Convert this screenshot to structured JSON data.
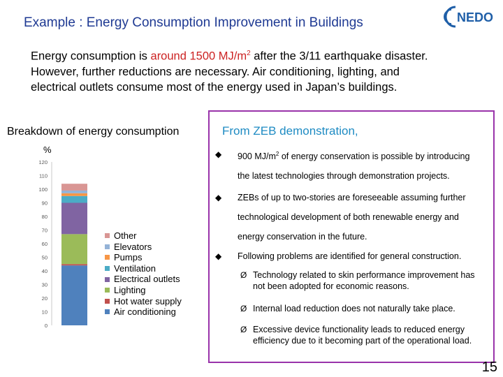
{
  "header": {
    "title": "Example : Energy Consumption Improvement in Buildings",
    "logo_text": "NEDO"
  },
  "intro": {
    "p1": "Energy consumption is ",
    "highlight": "around 1500 MJ/m",
    "sup": "2",
    "p2": " after the 3/11 earthquake disaster.",
    "line2": "However, further reductions are necessary.  Air conditioning, lighting, and",
    "line3": "electrical outlets consume most of the energy used in Japan’s buildings."
  },
  "breakdown": {
    "title": "Breakdown of energy consumption",
    "unit": "%"
  },
  "chart_data": {
    "type": "bar",
    "stacked": true,
    "title": "Breakdown of energy consumption",
    "ylabel": "%",
    "ylim": [
      0,
      120
    ],
    "yticks": [
      0,
      10,
      20,
      30,
      40,
      50,
      60,
      70,
      80,
      90,
      100,
      110,
      120
    ],
    "categories": [
      ""
    ],
    "series": [
      {
        "name": "Air conditioning",
        "values": [
          44
        ],
        "color": "#4f81bd"
      },
      {
        "name": "Hot water supply",
        "values": [
          1
        ],
        "color": "#c0504d"
      },
      {
        "name": "Lighting",
        "values": [
          22
        ],
        "color": "#9bbb59"
      },
      {
        "name": "Electrical outlets",
        "values": [
          23
        ],
        "color": "#8064a2"
      },
      {
        "name": "Ventilation",
        "values": [
          5
        ],
        "color": "#4bacc6"
      },
      {
        "name": "Pumps",
        "values": [
          2
        ],
        "color": "#f79646"
      },
      {
        "name": "Elevators",
        "values": [
          2
        ],
        "color": "#95b3d7"
      },
      {
        "name": "Other",
        "values": [
          5
        ],
        "color": "#d99694"
      }
    ],
    "legend_order": [
      "Other",
      "Elevators",
      "Pumps",
      "Ventilation",
      "Electrical outlets",
      "Lighting",
      "Hot water supply",
      "Air conditioning"
    ]
  },
  "zeb": {
    "title": "From ZEB demonstration,",
    "bullets": [
      {
        "pre": "900 MJ/m",
        "sup": "2",
        "post": " of energy conservation is possible by introducing",
        "line2": "the latest technologies through demonstration projects."
      },
      {
        "pre": "ZEBs of up to two-stories are foreseeable assuming further",
        "sup": "",
        "post": "",
        "line2": "technological development of both renewable energy and",
        "line3": "energy conservation in the future."
      },
      {
        "pre": "Following problems are identified for general construction.",
        "sup": "",
        "post": "",
        "line2": ""
      }
    ],
    "subs": [
      "Technology related to skin performance improvement has not been adopted for economic reasons.",
      "Internal load reduction does not naturally take place.",
      "Excessive device functionality leads to reduced energy efficiency due to it becoming part of the operational load."
    ],
    "bullet_glyph": "◆",
    "arrow_glyph": "Ø"
  },
  "page": {
    "number": "15"
  }
}
